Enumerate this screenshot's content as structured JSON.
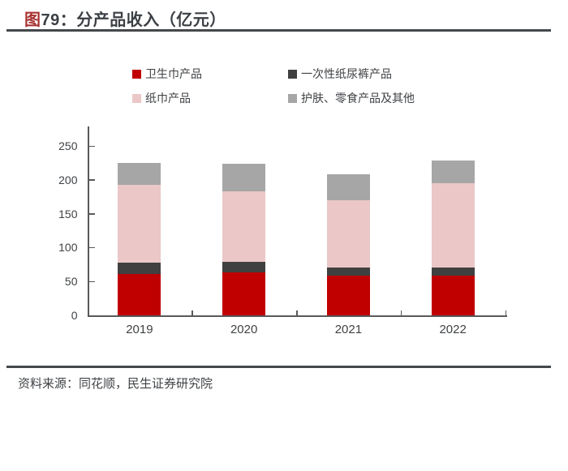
{
  "header": {
    "figure_label": "图",
    "figure_number": "79：",
    "title": "分产品收入（亿元）"
  },
  "legend": [
    {
      "label": "卫生巾产品",
      "color": "#c00000"
    },
    {
      "label": "一次性纸尿裤产品",
      "color": "#404040"
    },
    {
      "label": "纸巾产品",
      "color": "#ebc7c7"
    },
    {
      "label": "护肤、零食产品及其他",
      "color": "#a6a6a6"
    }
  ],
  "chart_data": {
    "type": "bar",
    "stacked": true,
    "title": "分产品收入（亿元）",
    "categories": [
      "2019",
      "2020",
      "2021",
      "2022"
    ],
    "series": [
      {
        "name": "卫生巾产品",
        "color": "#c00000",
        "values": [
          61,
          63,
          59,
          59
        ]
      },
      {
        "name": "一次性纸尿裤产品",
        "color": "#404040",
        "values": [
          17,
          16,
          12,
          12
        ]
      },
      {
        "name": "纸巾产品",
        "color": "#ebc7c7",
        "values": [
          114,
          104,
          99,
          124
        ]
      },
      {
        "name": "护肤、零食产品及其他",
        "color": "#a6a6a6",
        "values": [
          33,
          41,
          38,
          33
        ]
      }
    ],
    "totals": [
      225,
      224,
      208,
      228
    ],
    "xlabel": "",
    "ylabel": "",
    "ylim": [
      0,
      250
    ],
    "yticks": [
      0,
      50,
      100,
      150,
      200,
      250
    ],
    "grid": false,
    "legend_position": "top"
  },
  "footer": {
    "source": "资料来源：同花顺，民生证券研究院"
  }
}
